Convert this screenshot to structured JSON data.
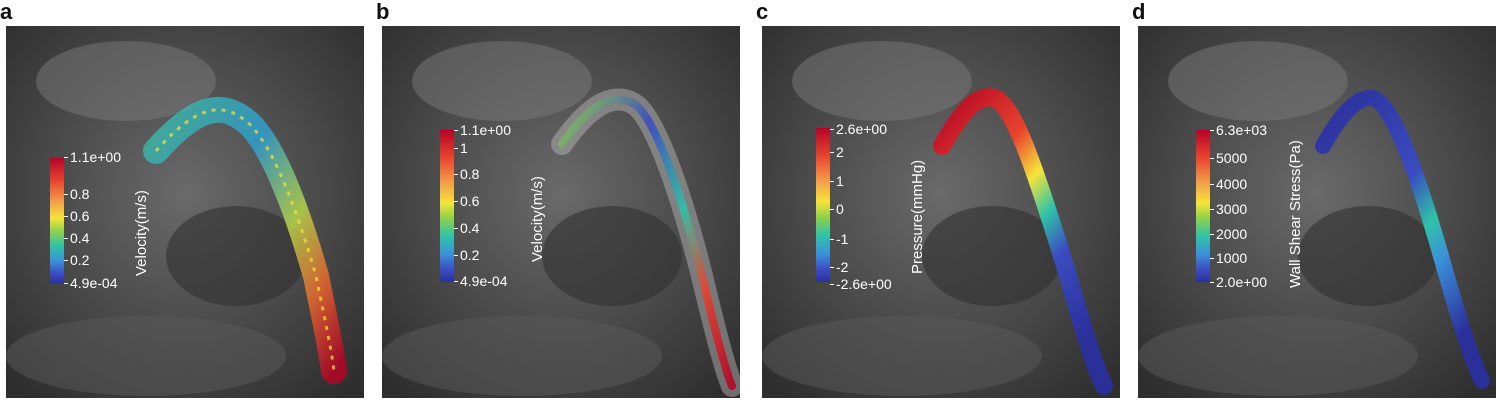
{
  "panels": [
    {
      "letter": "a",
      "quantity": "Velocity(m/s)",
      "ticks": [
        "1.1e+00",
        "0.8",
        "0.6",
        "0.4",
        "0.2",
        "4.9e-04"
      ]
    },
    {
      "letter": "b",
      "quantity": "Velocity(m/s)",
      "ticks": [
        "1.1e+00",
        "1",
        "0.8",
        "0.6",
        "0.4",
        "0.2",
        "4.9e-04"
      ]
    },
    {
      "letter": "c",
      "quantity": "Pressure(mmHg)",
      "ticks": [
        "2.6e+00",
        "2",
        "1",
        "0",
        "-1",
        "-2",
        "-2.6e+00"
      ]
    },
    {
      "letter": "d",
      "quantity": "Wall Shear Stress(Pa)",
      "ticks": [
        "6.3e+03",
        "5000",
        "4000",
        "3000",
        "2000",
        "1000",
        "2.0e+00"
      ]
    }
  ],
  "colors": {
    "colormap": [
      "#b40426",
      "#e8432e",
      "#f3a04a",
      "#f6e43a",
      "#8fd14a",
      "#2fc3a8",
      "#3b8fd9",
      "#3b4cc0",
      "#2b2f9a"
    ],
    "background_gray": "#4a4a4a"
  }
}
